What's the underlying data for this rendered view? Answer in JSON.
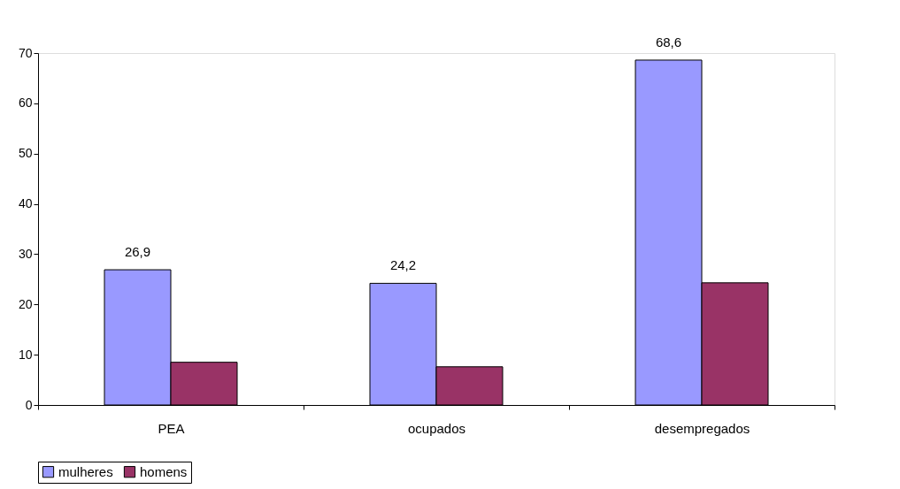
{
  "chart_data": {
    "type": "bar",
    "categories": [
      "PEA",
      "ocupados",
      "desempregados"
    ],
    "series": [
      {
        "name": "mulheres",
        "color": "#9999ff",
        "values": [
          26.9,
          24.2,
          68.6
        ],
        "value_labels": [
          "26,9",
          "24,2",
          "68,6"
        ]
      },
      {
        "name": "homens",
        "color": "#993366",
        "values": [
          8.5,
          7.6,
          24.3
        ]
      }
    ],
    "ylim": [
      0,
      70
    ],
    "yticks": [
      0,
      10,
      20,
      30,
      40,
      50,
      60,
      70
    ],
    "grid": false,
    "legend": "bottom"
  }
}
